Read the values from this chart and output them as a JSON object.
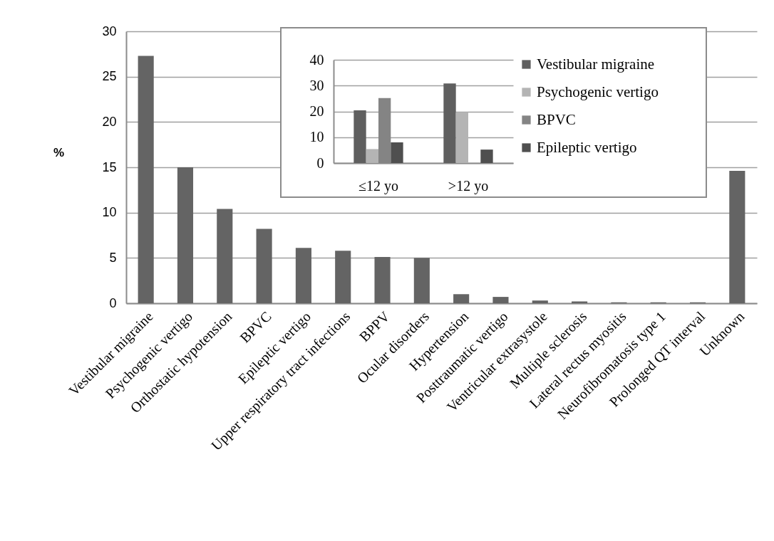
{
  "chart_data": [
    {
      "type": "bar",
      "ylabel": "%",
      "categories": [
        "Vestibular migraine",
        "Psychogenic vertigo",
        "Orthostatic hypotension",
        "BPVC",
        "Epileptic vertigo",
        "Upper respiratory tract infections",
        "BPPV",
        "Ocular disorders",
        "Hypertension",
        "Posttraumatic vertigo",
        "Ventricular extrasystole",
        "Multiple sclerosis",
        "Lateral rectus myositis",
        "Neurofibromatosis type 1",
        "Prolonged QT interval",
        "Unknown"
      ],
      "values": [
        27.3,
        15.0,
        10.4,
        8.2,
        6.1,
        5.8,
        5.1,
        5.0,
        1.0,
        0.7,
        0.3,
        0.2,
        0.1,
        0.1,
        0.1,
        14.6
      ],
      "color": "#646464",
      "ylim": [
        0,
        30
      ],
      "yticks": [
        0,
        5,
        10,
        15,
        20,
        25,
        30
      ],
      "grid": "y"
    },
    {
      "type": "bar",
      "categories": [
        "≤12 yo",
        ">12 yo"
      ],
      "series": [
        {
          "name": "Vestibular migraine",
          "color": "#5f5f5f",
          "values": [
            20.4,
            30.8
          ]
        },
        {
          "name": "Psychogenic vertigo",
          "color": "#b4b4b4",
          "values": [
            5.4,
            19.7
          ]
        },
        {
          "name": "BPVC",
          "color": "#848484",
          "values": [
            25.2,
            0
          ]
        },
        {
          "name": "Epileptic vertigo",
          "color": "#4f4f4f",
          "values": [
            8.0,
            5.2
          ]
        }
      ],
      "ylim": [
        0,
        40
      ],
      "yticks": [
        0,
        10,
        20,
        30,
        40
      ],
      "grid": "y",
      "legend": "right"
    }
  ]
}
